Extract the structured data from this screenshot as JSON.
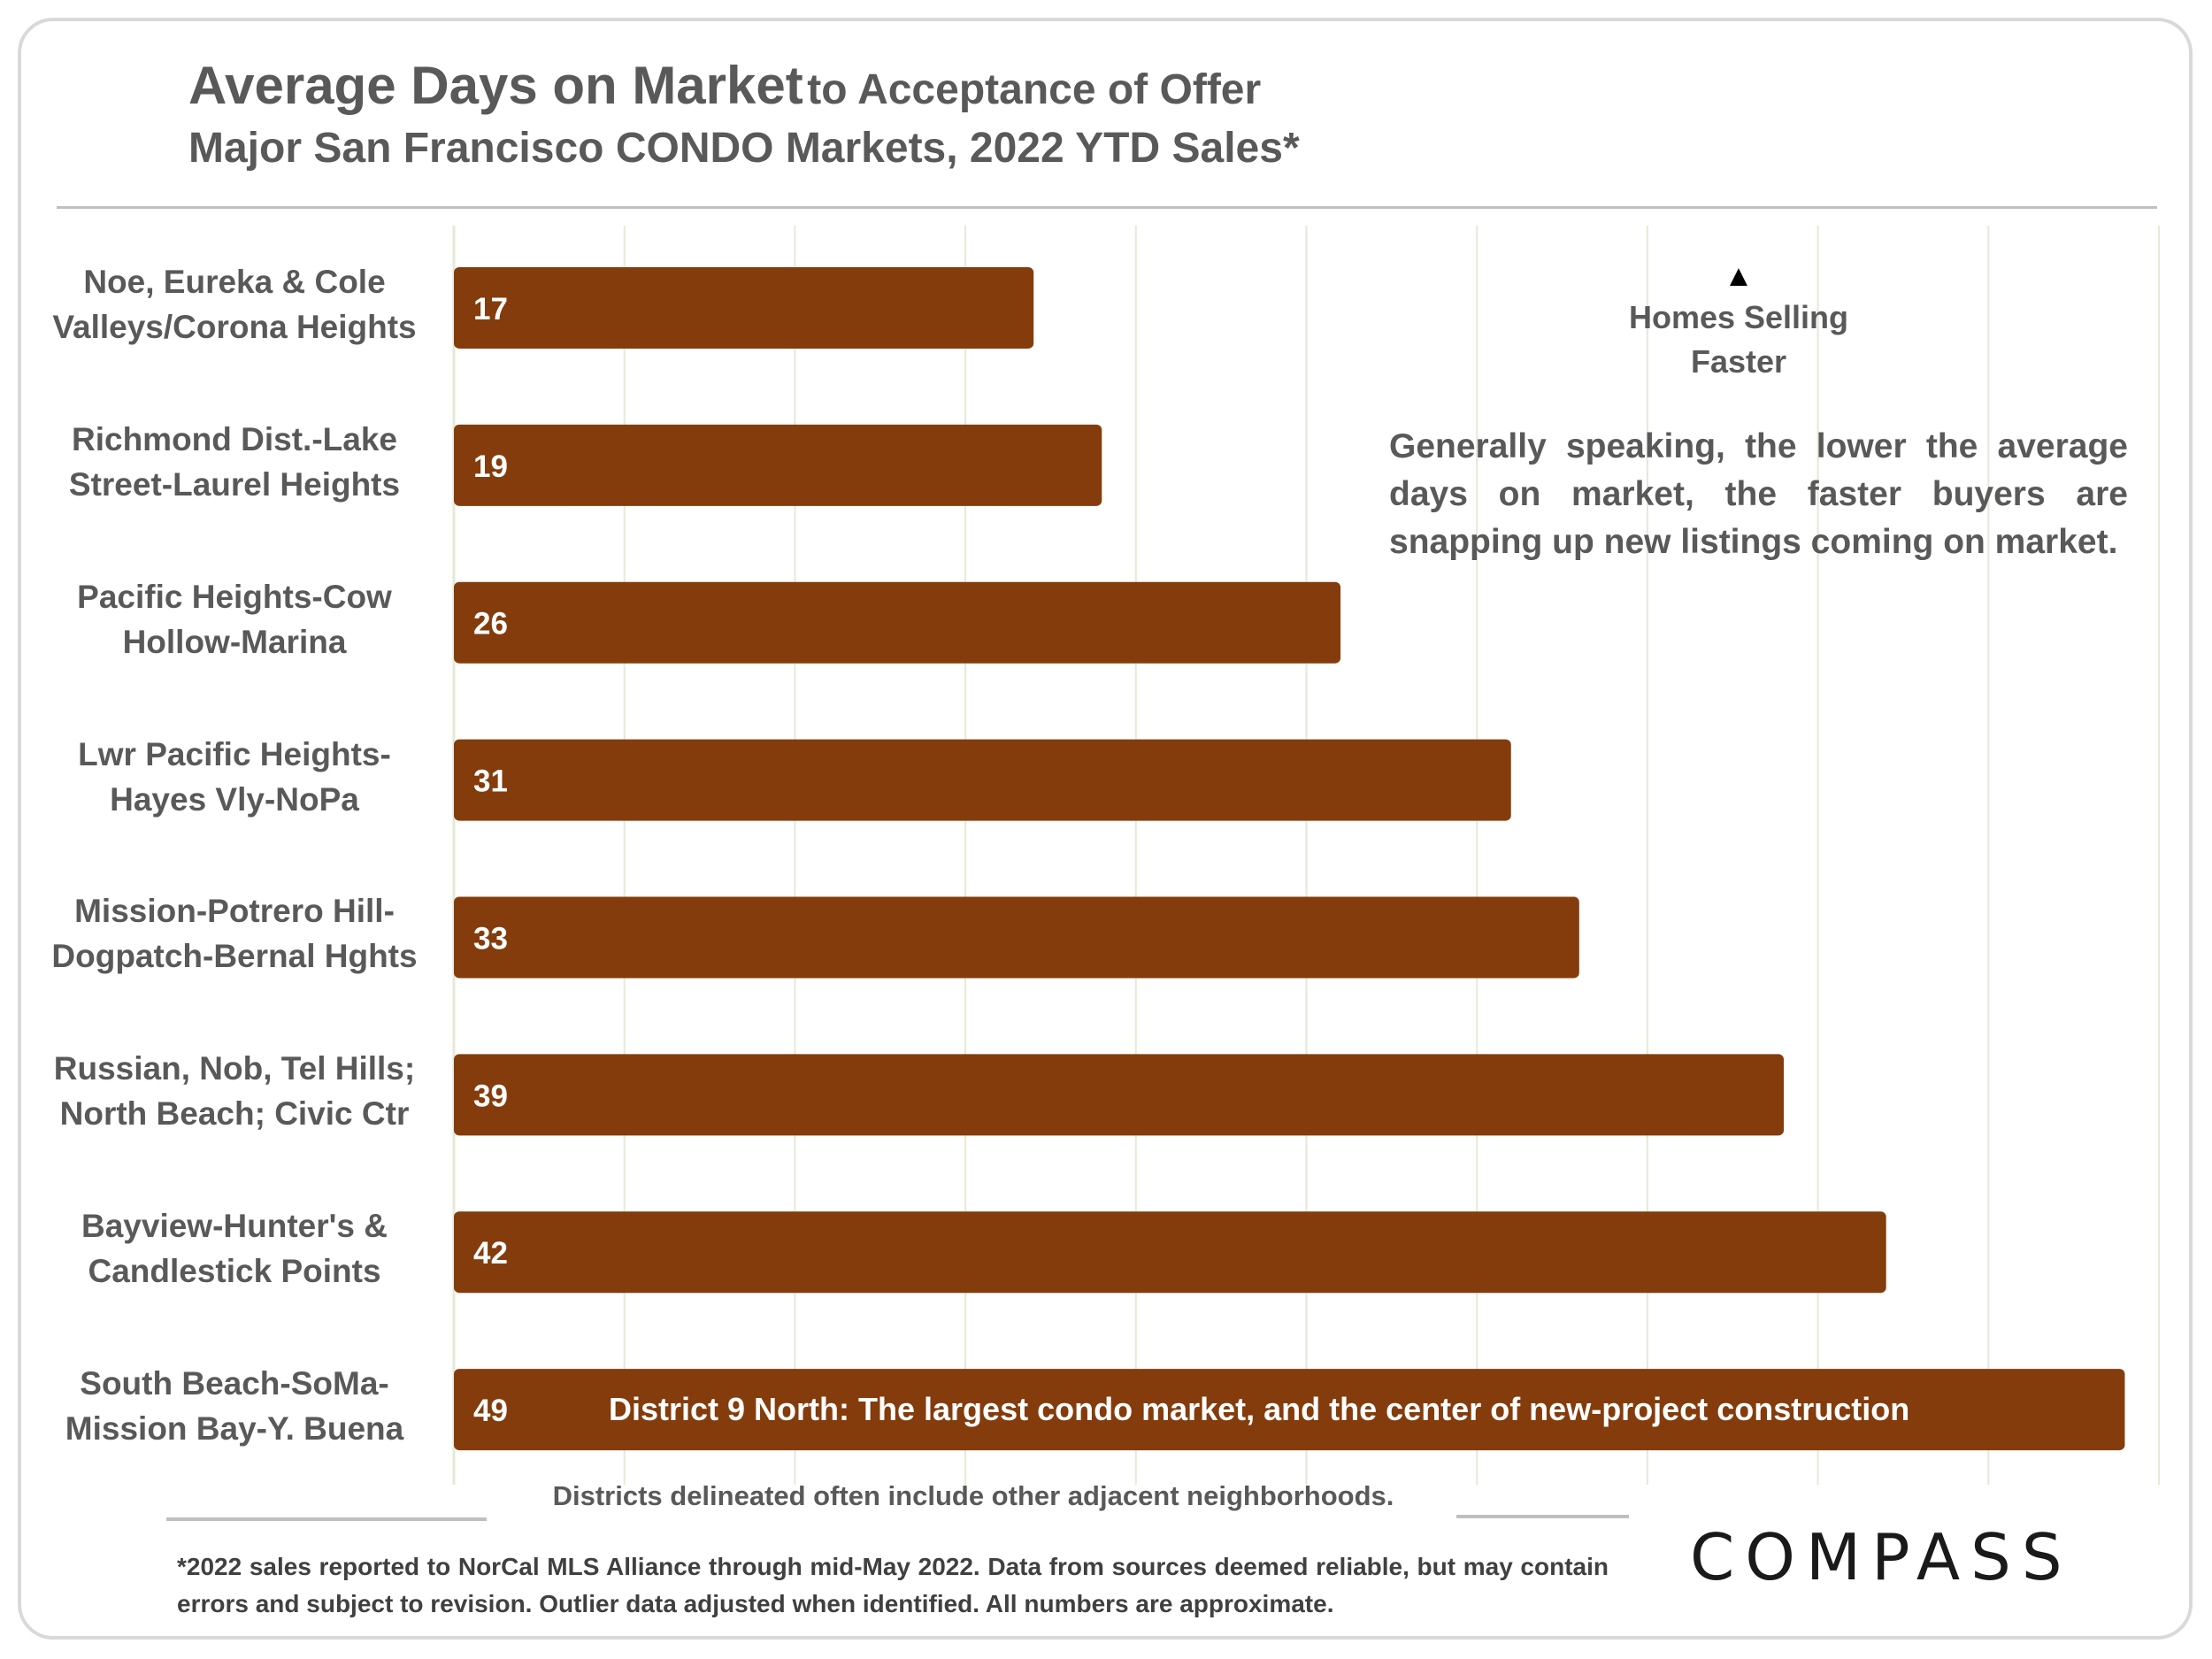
{
  "header": {
    "title_main": "Average Days on Market",
    "title_suffix": "to Acceptance of Offer",
    "subtitle": "Major San Francisco CONDO Markets, 2022 YTD Sales*"
  },
  "chart_data": {
    "type": "bar",
    "orientation": "horizontal",
    "categories": [
      [
        "Noe, Eureka & Cole",
        "Valleys/Corona Heights"
      ],
      [
        "Richmond Dist.-Lake",
        "Street-Laurel Heights"
      ],
      [
        "Pacific Heights-Cow",
        "Hollow-Marina"
      ],
      [
        "Lwr Pacific Heights-",
        "Hayes Vly-NoPa"
      ],
      [
        "Mission-Potrero Hill-",
        "Dogpatch-Bernal Hghts"
      ],
      [
        "Russian, Nob, Tel Hills;",
        "North Beach; Civic Ctr"
      ],
      [
        "Bayview-Hunter's &",
        "Candlestick Points"
      ],
      [
        "South Beach-SoMa-",
        "Mission Bay-Y. Buena"
      ]
    ],
    "values": [
      17,
      19,
      26,
      31,
      33,
      39,
      42,
      49
    ],
    "data_labels": [
      "17",
      "19",
      "26",
      "31",
      "33",
      "39",
      "42",
      "49"
    ],
    "bar_annotation": {
      "index": 7,
      "text": "District 9 North: The largest condo market, and the center of new-project construction"
    },
    "xlim": [
      0,
      50
    ],
    "x_gridline_step": 5,
    "grid": true,
    "bar_color": "#843C0C",
    "gridline_color": "#e6e9d5",
    "label_color": "#595959"
  },
  "annotations": {
    "faster_arrow": "▲",
    "faster_line1": "Homes Selling",
    "faster_line2": "Faster",
    "explain_line1": "Generally speaking, the lower the average",
    "explain_line2": "days on market, the faster buyers are",
    "explain_line3": "snapping up new listings coming on market."
  },
  "footer": {
    "districts_note": "Districts delineated often include other adjacent neighborhoods.",
    "footnote": "*2022 sales reported to NorCal MLS Alliance through mid-May 2022. Data from sources deemed reliable, but may contain errors and subject to revision. Outlier data adjusted when identified. All numbers are approximate.",
    "logo": "COMPASS"
  }
}
